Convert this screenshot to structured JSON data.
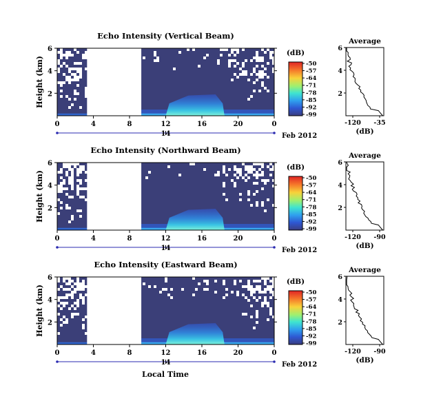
{
  "chart_data": [
    {
      "type": "heatmap",
      "title": "Echo Intensity (Vertical Beam)",
      "ylabel": "Height (km)",
      "xticks": [
        "0",
        "4",
        "8",
        "12",
        "16",
        "20",
        "0"
      ],
      "xlim": [
        0,
        24
      ],
      "yticks": [
        "2",
        "4",
        "6"
      ],
      "ylim": [
        0,
        6
      ],
      "date_marker": "14",
      "date_label": "Feb 2012",
      "colorbar_label": "(dB)",
      "colorbar_ticks": [
        "-50",
        "-57",
        "-64",
        "-71",
        "-78",
        "-85",
        "-92",
        "-99"
      ],
      "data_gap_hours": [
        3.3,
        9.3
      ],
      "profile": {
        "title": "Average",
        "xlabel": "(dB)",
        "xticks": [
          "-120",
          "-35"
        ],
        "yticks": [
          "2",
          "4",
          "6"
        ]
      }
    },
    {
      "type": "heatmap",
      "title": "Echo Intensity (Northward Beam)",
      "ylabel": "Height (km)",
      "xticks": [
        "0",
        "4",
        "8",
        "12",
        "16",
        "20",
        "0"
      ],
      "xlim": [
        0,
        24
      ],
      "yticks": [
        "2",
        "4",
        "6"
      ],
      "ylim": [
        0,
        6
      ],
      "date_marker": "14",
      "date_label": "Feb 2012",
      "colorbar_label": "(dB)",
      "colorbar_ticks": [
        "-50",
        "-57",
        "-64",
        "-71",
        "-78",
        "-85",
        "-92",
        "-99"
      ],
      "data_gap_hours": [
        3.3,
        9.3
      ],
      "profile": {
        "title": "Average",
        "xlabel": "(dB)",
        "xticks": [
          "-120",
          "-90"
        ],
        "yticks": [
          "2",
          "4",
          "6"
        ]
      }
    },
    {
      "type": "heatmap",
      "title": "Echo Intensity (Eastward Beam)",
      "ylabel": "Height (km)",
      "xticks": [
        "0",
        "4",
        "8",
        "12",
        "16",
        "20",
        "0"
      ],
      "xlim": [
        0,
        24
      ],
      "yticks": [
        "2",
        "4",
        "6"
      ],
      "ylim": [
        0,
        6
      ],
      "date_marker": "14",
      "date_label": "Feb 2012",
      "colorbar_label": "(dB)",
      "colorbar_ticks": [
        "-50",
        "-57",
        "-64",
        "-71",
        "-78",
        "-85",
        "-92",
        "-99"
      ],
      "data_gap_hours": [
        3.3,
        9.3
      ],
      "profile": {
        "title": "Average",
        "xlabel": "(dB)",
        "xticks": [
          "-120",
          "-90"
        ],
        "yticks": [
          "2",
          "4",
          "6"
        ]
      }
    }
  ],
  "footer": {
    "xlabel": "Local Time"
  },
  "colors": {
    "background_level": "#3b3f78",
    "colorbar": [
      "#e8252a",
      "#f56f2a",
      "#f9c636",
      "#d6ef4a",
      "#7ef08a",
      "#34e6d4",
      "#2fa6ee",
      "#2f5fd6",
      "#3a3d82"
    ]
  }
}
